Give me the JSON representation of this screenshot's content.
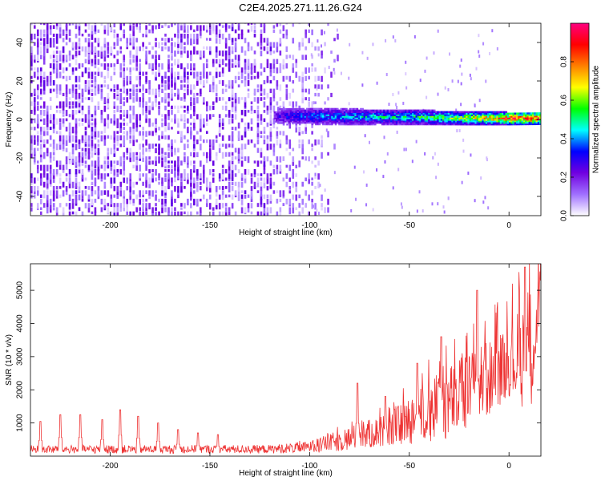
{
  "title": "C2E4.2025.271.11.26.G24",
  "chart_data": [
    {
      "type": "heatmap",
      "xlabel": "Height of straight line (km)",
      "ylabel": "Frequency (Hz)",
      "xlim": [
        -240,
        16
      ],
      "ylim": [
        -50,
        50
      ],
      "xticks": [
        -200,
        -150,
        -100,
        -50,
        0
      ],
      "yticks": [
        -40,
        -20,
        0,
        20,
        40
      ],
      "colorbar": {
        "label": "Normalized spectral amplitude",
        "range": [
          0,
          1
        ],
        "ticks": [
          0.0,
          0.2,
          0.4,
          0.6,
          0.8
        ],
        "colors": [
          "#ffffff",
          "#a070ff",
          "#7000e0",
          "#0000ff",
          "#00ffff",
          "#00ff00",
          "#ffff00",
          "#ff8000",
          "#ff0000",
          "#ff0080"
        ]
      },
      "noise_region": {
        "x_range": [
          -240,
          -100
        ],
        "y_range": [
          -50,
          50
        ],
        "amplitude_range": [
          0.0,
          0.25
        ]
      },
      "signal_band": [
        {
          "x": -118,
          "freq": 1.5,
          "amplitude": 0.25
        },
        {
          "x": -110,
          "freq": 1.5,
          "amplitude": 0.35
        },
        {
          "x": -100,
          "freq": 1.5,
          "amplitude": 0.4
        },
        {
          "x": -80,
          "freq": 1.2,
          "amplitude": 0.45
        },
        {
          "x": -60,
          "freq": 1.0,
          "amplitude": 0.5
        },
        {
          "x": -40,
          "freq": 0.8,
          "amplitude": 0.55
        },
        {
          "x": -20,
          "freq": 0.5,
          "amplitude": 0.7
        },
        {
          "x": 0,
          "freq": 0.3,
          "amplitude": 0.9
        },
        {
          "x": 10,
          "freq": 0.3,
          "amplitude": 0.95
        }
      ]
    },
    {
      "type": "line",
      "xlabel": "Height of straight line (km)",
      "ylabel": "SNR (10 * v/v)",
      "xlim": [
        -240,
        16
      ],
      "ylim": [
        0,
        5800
      ],
      "xticks": [
        -200,
        -150,
        -100,
        -50,
        0
      ],
      "yticks": [
        1000,
        2000,
        3000,
        4000,
        5000
      ],
      "color": "#ee3333",
      "baseline_envelope": [
        {
          "x": -240,
          "low": 80,
          "high": 330
        },
        {
          "x": -120,
          "low": 80,
          "high": 340
        },
        {
          "x": -100,
          "low": 100,
          "high": 450
        },
        {
          "x": -80,
          "low": 150,
          "high": 900
        },
        {
          "x": -60,
          "low": 300,
          "high": 1300
        },
        {
          "x": -40,
          "low": 400,
          "high": 2300
        },
        {
          "x": -20,
          "low": 600,
          "high": 3200
        },
        {
          "x": 0,
          "low": 1800,
          "high": 3800
        },
        {
          "x": 5,
          "low": 1500,
          "high": 4500
        },
        {
          "x": 10,
          "low": 1000,
          "high": 5000
        },
        {
          "x": 16,
          "low": 3500,
          "high": 5700
        }
      ],
      "peaks": [
        {
          "x": -235,
          "y": 1050
        },
        {
          "x": -225,
          "y": 1250
        },
        {
          "x": -215,
          "y": 1250
        },
        {
          "x": -204,
          "y": 1100
        },
        {
          "x": -195,
          "y": 1400
        },
        {
          "x": -186,
          "y": 1200
        },
        {
          "x": -176,
          "y": 1000
        },
        {
          "x": -166,
          "y": 800
        },
        {
          "x": -156,
          "y": 700
        },
        {
          "x": -146,
          "y": 650
        },
        {
          "x": -76,
          "y": 2200
        },
        {
          "x": -62,
          "y": 1800
        },
        {
          "x": -46,
          "y": 2800
        },
        {
          "x": -34,
          "y": 3600
        },
        {
          "x": -16,
          "y": 5000
        },
        {
          "x": 8,
          "y": 5700
        }
      ]
    }
  ]
}
